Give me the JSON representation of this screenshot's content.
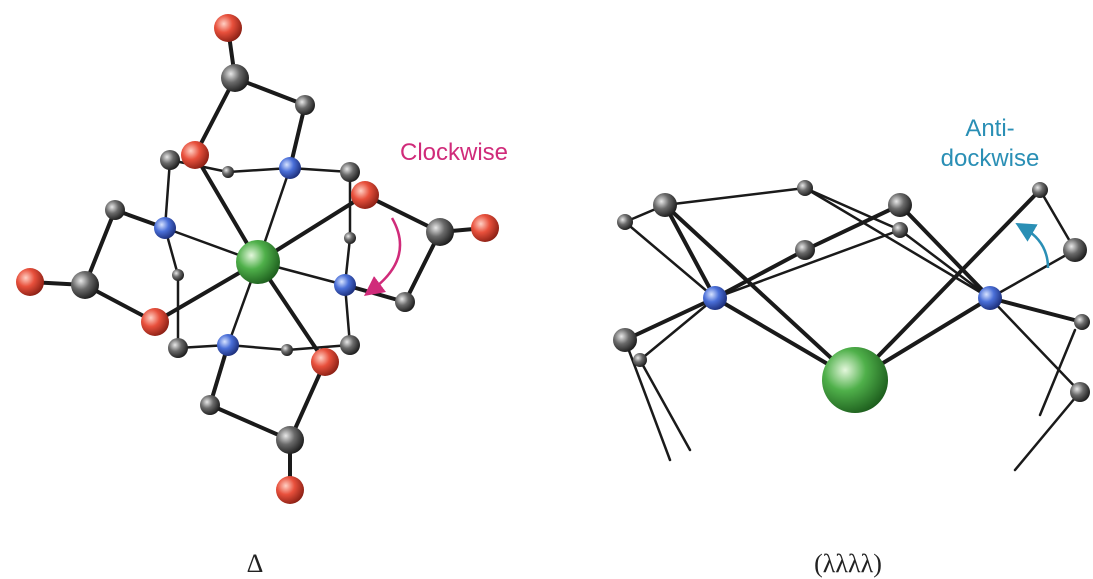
{
  "labels": {
    "clockwise": "Clockwise",
    "anticlockwise_line1": "Anti-",
    "anticlockwise_line2": "dockwise",
    "left_caption": "Δ",
    "right_caption": "(λλλλ)"
  }
}
